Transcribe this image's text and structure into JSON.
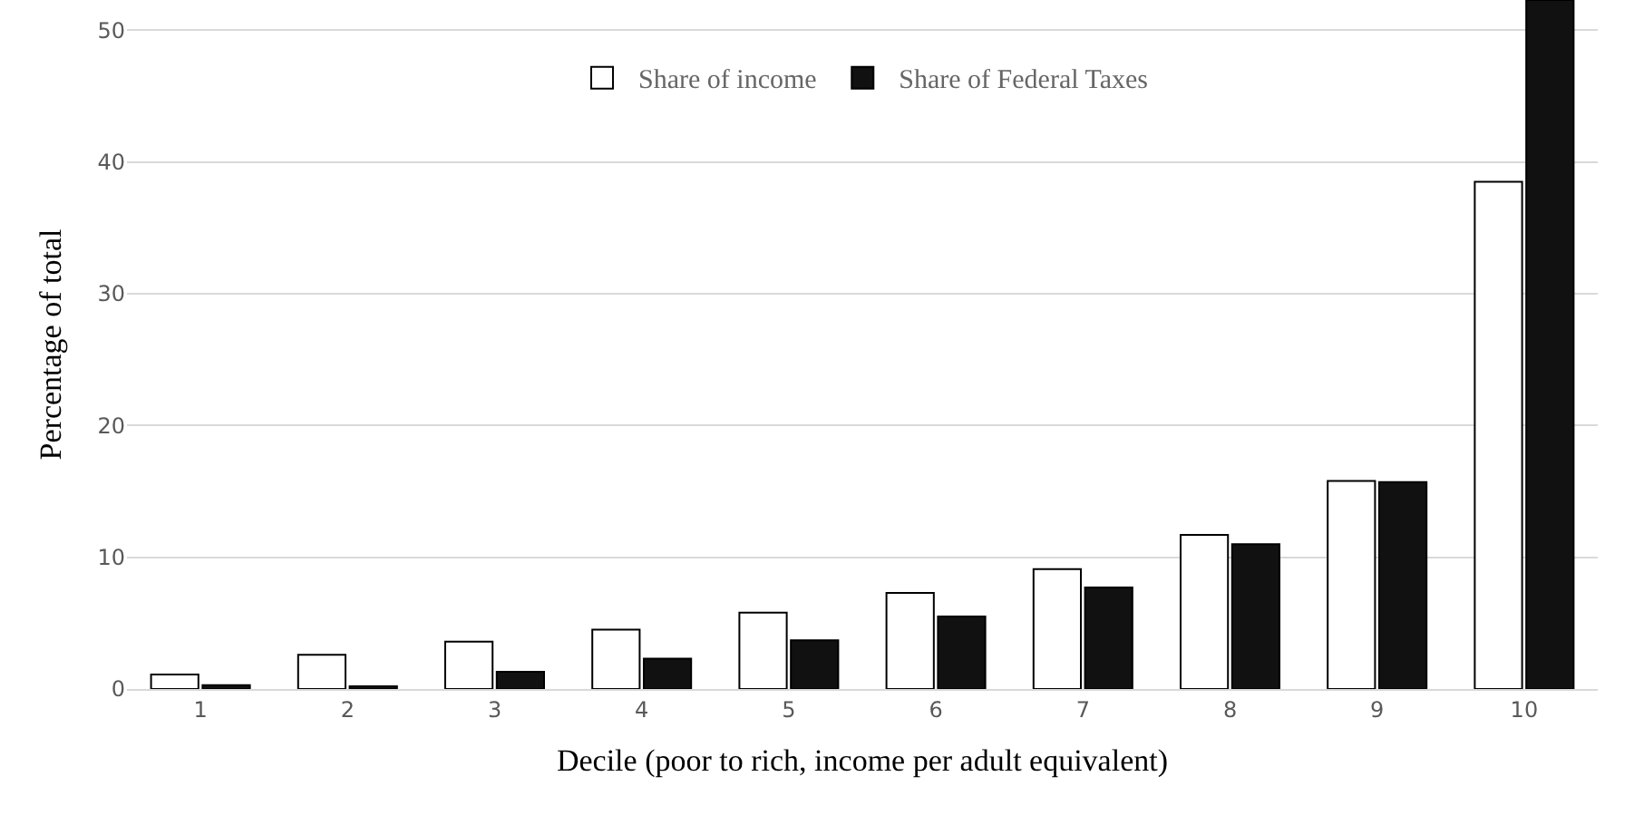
{
  "chart_data": {
    "type": "bar",
    "xlabel": "Decile (poor to rich, income per adult equivalent)",
    "ylabel": "Percentage of total",
    "categories": [
      "1",
      "2",
      "3",
      "4",
      "5",
      "6",
      "7",
      "8",
      "9",
      "10"
    ],
    "series": [
      {
        "name": "Share of income",
        "color": "#ffffff",
        "values": [
          1.1,
          2.6,
          3.6,
          4.5,
          5.8,
          7.3,
          9.1,
          11.7,
          15.8,
          38.5
        ]
      },
      {
        "name": "Share of Federal Taxes",
        "color": "#111111",
        "values": [
          0.3,
          0.2,
          1.3,
          2.3,
          3.7,
          5.5,
          7.7,
          11.0,
          15.7,
          52.3
        ]
      }
    ],
    "ylim": [
      0,
      52.3
    ],
    "yticks": [
      0,
      10,
      20,
      30,
      40,
      50
    ],
    "grid": "y",
    "legend": "top"
  }
}
